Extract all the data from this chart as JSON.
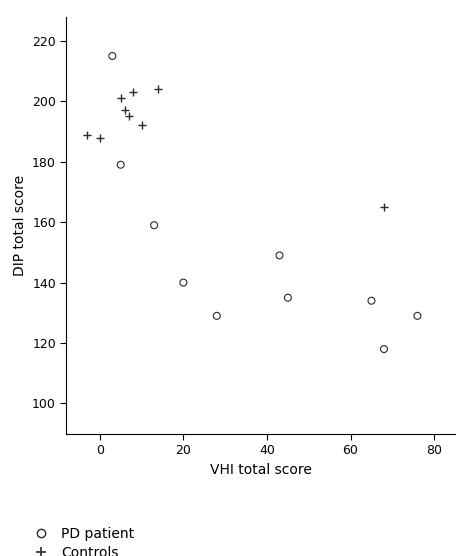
{
  "pd_patients": {
    "vhi": [
      3,
      5,
      13,
      20,
      28,
      43,
      45,
      65,
      68,
      76
    ],
    "dip": [
      215,
      179,
      159,
      140,
      129,
      149,
      135,
      134,
      118,
      129
    ]
  },
  "controls": {
    "vhi": [
      -3,
      0,
      5,
      6,
      7,
      8,
      10,
      14,
      68
    ],
    "dip": [
      189,
      188,
      201,
      197,
      195,
      203,
      192,
      204,
      165
    ]
  },
  "xlabel": "VHI total score",
  "ylabel": "DIP total score",
  "xlim": [
    -8,
    85
  ],
  "ylim": [
    90,
    228
  ],
  "xticks": [
    0,
    20,
    40,
    60,
    80
  ],
  "yticks": [
    100,
    120,
    140,
    160,
    180,
    200,
    220
  ],
  "legend_pd": "PD patient",
  "legend_controls": "Controls",
  "background_color": "#ffffff",
  "marker_color": "#2a2a2a",
  "marker_size_circle": 5,
  "marker_size_plus": 6,
  "font_size_labels": 10,
  "font_size_ticks": 9,
  "font_size_legend": 10
}
